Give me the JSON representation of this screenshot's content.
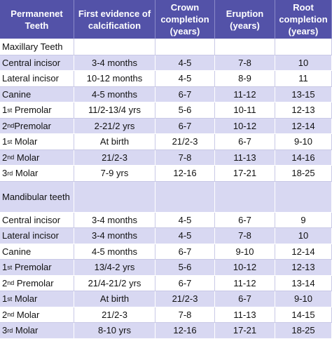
{
  "table": {
    "header": [
      "Permanenet Teeth",
      "First evidence of calcification",
      "Crown completion (years)",
      "Eruption (years)",
      "Root completion (years)"
    ],
    "rows": [
      {
        "section": "Maxillary Teeth"
      },
      {
        "cells": [
          "Central incisor",
          "3-4 months",
          "4-5",
          "7-8",
          "10"
        ]
      },
      {
        "cells": [
          "Lateral incisor",
          "10-12 months",
          "4-5",
          "8-9",
          "11"
        ]
      },
      {
        "cells": [
          "Canine",
          "4-5 months",
          "6-7",
          "11-12",
          "13-15"
        ]
      },
      {
        "cells": [
          {
            "num": "1",
            "sup": "st",
            "text": " Premolar"
          },
          "11/2-13/4 yrs",
          "5-6",
          "10-11",
          "12-13"
        ]
      },
      {
        "cells": [
          {
            "num": "2",
            "sup": "nd",
            "text": "Premolar"
          },
          "2-21/2 yrs",
          "6-7",
          "10-12",
          "12-14"
        ]
      },
      {
        "cells": [
          {
            "num": "1",
            "sup": "st",
            "text": " Molar"
          },
          "At birth",
          "21/2-3",
          "6-7",
          "9-10"
        ]
      },
      {
        "cells": [
          {
            "num": "2",
            "sup": "nd",
            "text": " Molar"
          },
          "21/2-3",
          "7-8",
          "11-13",
          "14-16"
        ]
      },
      {
        "cells": [
          {
            "num": "3",
            "sup": "rd",
            "text": " Molar"
          },
          "7-9 yrs",
          "12-16",
          "17-21",
          "18-25"
        ]
      },
      {
        "section": "Mandibular teeth"
      },
      {
        "cells": [
          "Central incisor",
          "3-4 months",
          "4-5",
          "6-7",
          "9"
        ]
      },
      {
        "cells": [
          "Lateral incisor",
          "3-4 months",
          "4-5",
          "7-8",
          "10"
        ]
      },
      {
        "cells": [
          "Canine",
          "4-5 months",
          "6-7",
          "9-10",
          "12-14"
        ]
      },
      {
        "cells": [
          {
            "num": "1",
            "sup": "st",
            "text": " Premolar"
          },
          "13/4-2 yrs",
          "5-6",
          "10-12",
          "12-13"
        ]
      },
      {
        "cells": [
          {
            "num": "2",
            "sup": "nd",
            "text": " Premolar"
          },
          "21/4-21/2 yrs",
          "6-7",
          "11-12",
          "13-14"
        ]
      },
      {
        "cells": [
          {
            "num": "1",
            "sup": "st",
            "text": " Molar"
          },
          "At birth",
          "21/2-3",
          "6-7",
          "9-10"
        ]
      },
      {
        "cells": [
          {
            "num": "2",
            "sup": "nd",
            "text": " Molar"
          },
          "21/2-3",
          "7-8",
          "11-13",
          "14-15"
        ]
      },
      {
        "cells": [
          {
            "num": "3",
            "sup": "rd",
            "text": " Molar"
          },
          "8-10 yrs",
          "12-16",
          "17-21",
          "18-25"
        ]
      }
    ]
  }
}
